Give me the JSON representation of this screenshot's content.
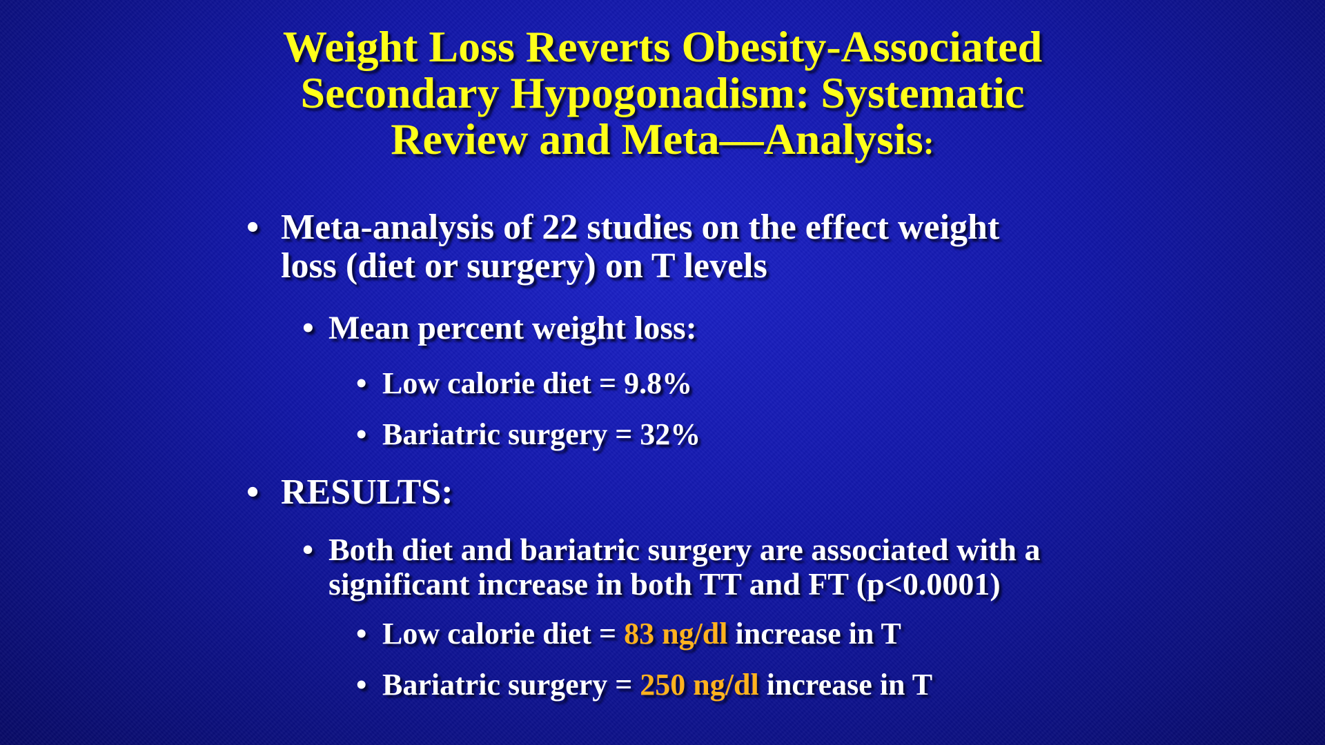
{
  "slide": {
    "title": {
      "line1": "Weight Loss Reverts Obesity-Associated",
      "line2": "Secondary Hypogonadism: Systematic",
      "line3": "Review and Meta—Analysis",
      "line3_colon": ":"
    },
    "bullet_glyph": "•",
    "section1": {
      "text_line1": "Meta-analysis of 22 studies on the effect weight",
      "text_line2": "loss (diet or surgery) on T levels",
      "sub": {
        "text": "Mean percent weight loss:",
        "items": [
          {
            "text": "Low calorie diet = 9.8%"
          },
          {
            "text": "Bariatric surgery = 32%"
          }
        ]
      }
    },
    "section2": {
      "text": "RESULTS:",
      "sub": {
        "text_line1": "Both diet and bariatric surgery are associated with a",
        "text_line2": "significant increase in both  TT and FT (p<0.0001)",
        "items": [
          {
            "prefix": "Low calorie diet = ",
            "value": "83 ng/dl",
            "suffix": " increase in T"
          },
          {
            "prefix": "Bariatric surgery = ",
            "value": "250 ng/dl",
            "suffix": " increase in T"
          }
        ]
      }
    },
    "colors": {
      "background": "#1116a6",
      "title": "#ffff1a",
      "text": "#ffffff",
      "highlight": "#ffb21e"
    }
  }
}
